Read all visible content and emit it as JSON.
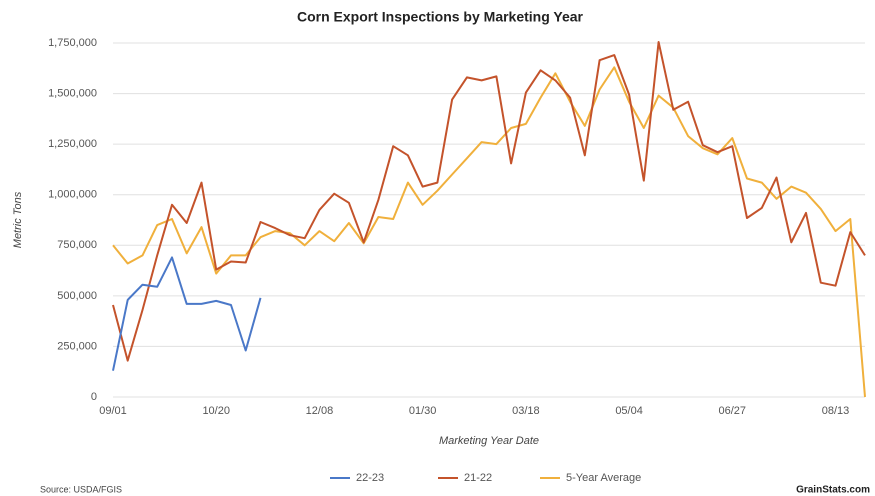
{
  "chart_data": {
    "type": "line",
    "title": "Corn Export Inspections by Marketing Year",
    "y_label": "Metric Tons",
    "x_label": "Marketing Year Date",
    "source": "Source: USDA/FGIS",
    "brand": "GrainStats.com",
    "categories": [
      "09/01",
      null,
      null,
      null,
      null,
      null,
      null,
      "10/20",
      null,
      null,
      null,
      null,
      null,
      null,
      "12/08",
      null,
      null,
      null,
      null,
      null,
      null,
      "01/30",
      null,
      null,
      null,
      null,
      null,
      null,
      "03/18",
      null,
      null,
      null,
      null,
      null,
      null,
      "05/04",
      null,
      null,
      null,
      null,
      null,
      null,
      "06/27",
      null,
      null,
      null,
      null,
      null,
      null,
      "08/13",
      null,
      null
    ],
    "ylim": [
      0,
      1750000
    ],
    "yticks": [
      0,
      {
        "value": 250000,
        "label": "250,000"
      },
      {
        "value": 500000,
        "label": "500,000"
      },
      {
        "value": 750000,
        "label": "750,000"
      },
      {
        "value": 1000000,
        "label": "1,000,000"
      },
      {
        "value": 1250000,
        "label": "1,250,000"
      },
      {
        "value": 1500000,
        "label": "1,500,000"
      },
      {
        "value": 1750000,
        "label": "1,750,000"
      }
    ],
    "grid": true,
    "series": [
      {
        "name": "22-23",
        "color": "#4a78c8",
        "values": [
          130000,
          480000,
          555000,
          545000,
          690000,
          460000,
          460000,
          475000,
          455000,
          230000,
          490000,
          null,
          null,
          null,
          null,
          null,
          null,
          null,
          null,
          null,
          null,
          null,
          null,
          null,
          null,
          null,
          null,
          null,
          null,
          null,
          null,
          null,
          null,
          null,
          null,
          null,
          null,
          null,
          null,
          null,
          null,
          null,
          null,
          null,
          null,
          null,
          null,
          null,
          null,
          null,
          null,
          null
        ]
      },
      {
        "name": "21-22",
        "color": "#c4532b",
        "values": [
          455000,
          180000,
          430000,
          700000,
          950000,
          860000,
          1060000,
          630000,
          670000,
          665000,
          865000,
          835000,
          800000,
          785000,
          925000,
          1005000,
          960000,
          765000,
          975000,
          1240000,
          1195000,
          1040000,
          1060000,
          1470000,
          1580000,
          1565000,
          1585000,
          1155000,
          1505000,
          1615000,
          1565000,
          1480000,
          1195000,
          1665000,
          1690000,
          1495000,
          1070000,
          1755000,
          1420000,
          1460000,
          1245000,
          1210000,
          1240000,
          885000,
          935000,
          1085000,
          765000,
          910000,
          565000,
          550000,
          815000,
          700000
        ]
      },
      {
        "name": "5-Year Average",
        "color": "#f0b03c",
        "values": [
          750000,
          660000,
          700000,
          850000,
          880000,
          710000,
          840000,
          610000,
          700000,
          700000,
          790000,
          820000,
          810000,
          750000,
          820000,
          770000,
          860000,
          760000,
          890000,
          880000,
          1060000,
          950000,
          1020000,
          1100000,
          1180000,
          1260000,
          1250000,
          1330000,
          1350000,
          1480000,
          1600000,
          1460000,
          1340000,
          1520000,
          1630000,
          1460000,
          1330000,
          1490000,
          1430000,
          1290000,
          1230000,
          1200000,
          1280000,
          1080000,
          1060000,
          980000,
          1040000,
          1010000,
          930000,
          820000,
          880000,
          0
        ]
      }
    ]
  }
}
